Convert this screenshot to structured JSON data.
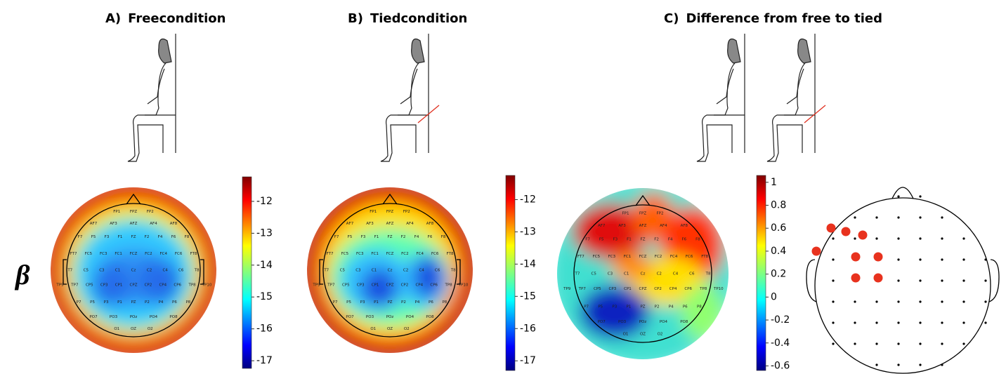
{
  "beta_label": "β",
  "panels": [
    {
      "label": "A)",
      "title": "Freecondition",
      "colorbar": {
        "lim": [
          -17.24,
          -11.23
        ],
        "ticks": [
          -12,
          -13,
          -14,
          -15,
          -16,
          -17
        ]
      }
    },
    {
      "label": "B)",
      "title": "Tiedcondition",
      "colorbar": {
        "lim": [
          -17.3,
          -11.25
        ],
        "ticks": [
          -12,
          -13,
          -14,
          -15,
          -16,
          -17
        ]
      }
    },
    {
      "label": "C)",
      "title": "Difference from free to tied",
      "colorbar": {
        "lim": [
          -0.64,
          1.06
        ],
        "ticks": [
          1,
          0.8,
          0.6,
          0.4,
          0.2,
          0,
          -0.2,
          -0.4,
          -0.6
        ]
      }
    }
  ],
  "electrodes": [
    "FP1",
    "FPZ",
    "FP2",
    "AF7",
    "AF3",
    "AFZ",
    "AF4",
    "AF8",
    "F7",
    "F5",
    "F3",
    "F1",
    "FZ",
    "F2",
    "F4",
    "F6",
    "F8",
    "FT7",
    "FC5",
    "FC3",
    "FC1",
    "FCZ",
    "FC2",
    "FC4",
    "FC6",
    "FT8",
    "T7",
    "C5",
    "C3",
    "C1",
    "Cz",
    "C2",
    "C4",
    "C6",
    "T8",
    "TP9",
    "TP7",
    "CP5",
    "CP3",
    "CP1",
    "CPZ",
    "CP2",
    "CP4",
    "CP6",
    "TP8",
    "TP10",
    "P7",
    "P5",
    "P3",
    "P1",
    "PZ",
    "P2",
    "P4",
    "P6",
    "P8",
    "PO7",
    "PO3",
    "POz",
    "PO4",
    "PO8",
    "O1",
    "OZ",
    "O2"
  ]
}
